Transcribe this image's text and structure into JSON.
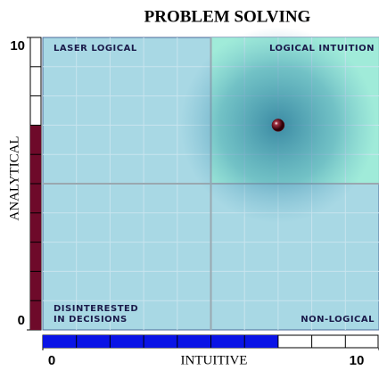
{
  "chart_data": {
    "type": "scatter",
    "title": "PROBLEM SOLVING",
    "x_label": "INTUITIVE",
    "y_label": "ANALYTICAL",
    "quadrant_labels": {
      "top_left": "LASER LOGICAL",
      "top_right": "LOGICAL INTUITION",
      "bottom_left": [
        "DISINTERESTED",
        "IN DECISIONS"
      ],
      "bottom_right": "NON-LOGICAL"
    },
    "x": [
      7
    ],
    "y": [
      7
    ],
    "point_color": "#5a0a14",
    "xlim": [
      0,
      10
    ],
    "ylim": [
      0,
      10
    ],
    "xticks": [
      0,
      10
    ],
    "yticks": [
      0,
      10
    ],
    "x_meter_color": "#0a14e6",
    "y_meter_color": "#6e0a2a"
  }
}
